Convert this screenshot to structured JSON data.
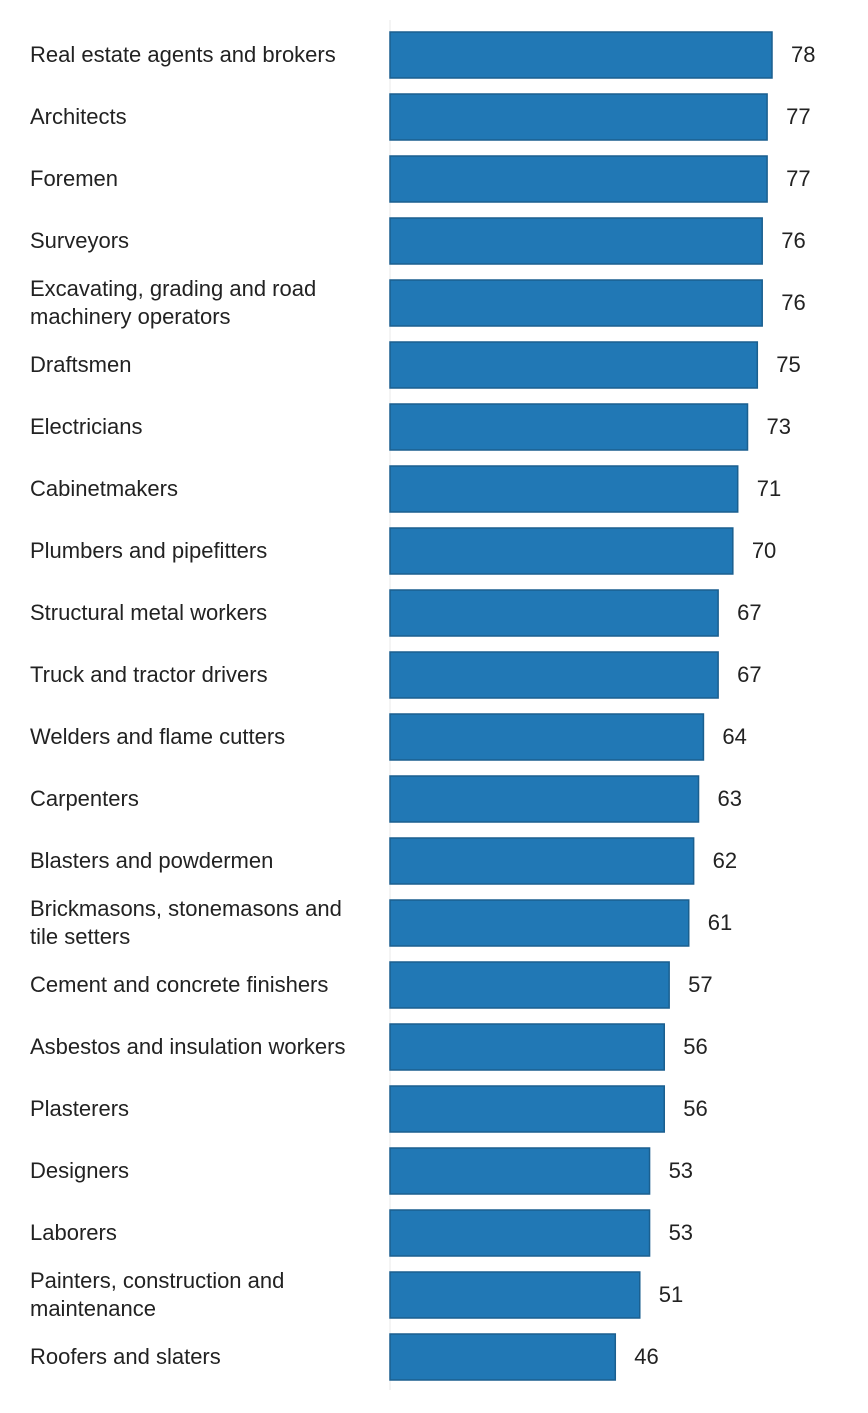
{
  "chart_data": {
    "type": "bar",
    "orientation": "horizontal",
    "categories": [
      "Real estate agents and brokers",
      "Architects",
      "Foremen",
      "Surveyors",
      "Excavating, grading and road machinery operators",
      "Draftsmen",
      "Electricians",
      "Cabinetmakers",
      "Plumbers and pipefitters",
      "Structural metal workers",
      "Truck and tractor drivers",
      "Welders and flame cutters",
      "Carpenters",
      "Blasters and powdermen",
      "Brickmasons, stonemasons and tile setters",
      "Cement and concrete finishers",
      "Asbestos and insulation workers",
      "Plasterers",
      "Designers",
      "Laborers",
      "Painters, construction and maintenance",
      "Roofers and slaters"
    ],
    "values": [
      78,
      77,
      77,
      76,
      76,
      75,
      73,
      71,
      70,
      67,
      67,
      64,
      63,
      62,
      61,
      57,
      56,
      56,
      53,
      53,
      51,
      46
    ],
    "title": "",
    "xlabel": "",
    "ylabel": "",
    "xlim": [
      0,
      78
    ],
    "grid": false,
    "legend": "none",
    "colors": {
      "bar_fill": "#2178b5",
      "bar_stroke": "#1a5f8f",
      "text": "#222222"
    }
  }
}
